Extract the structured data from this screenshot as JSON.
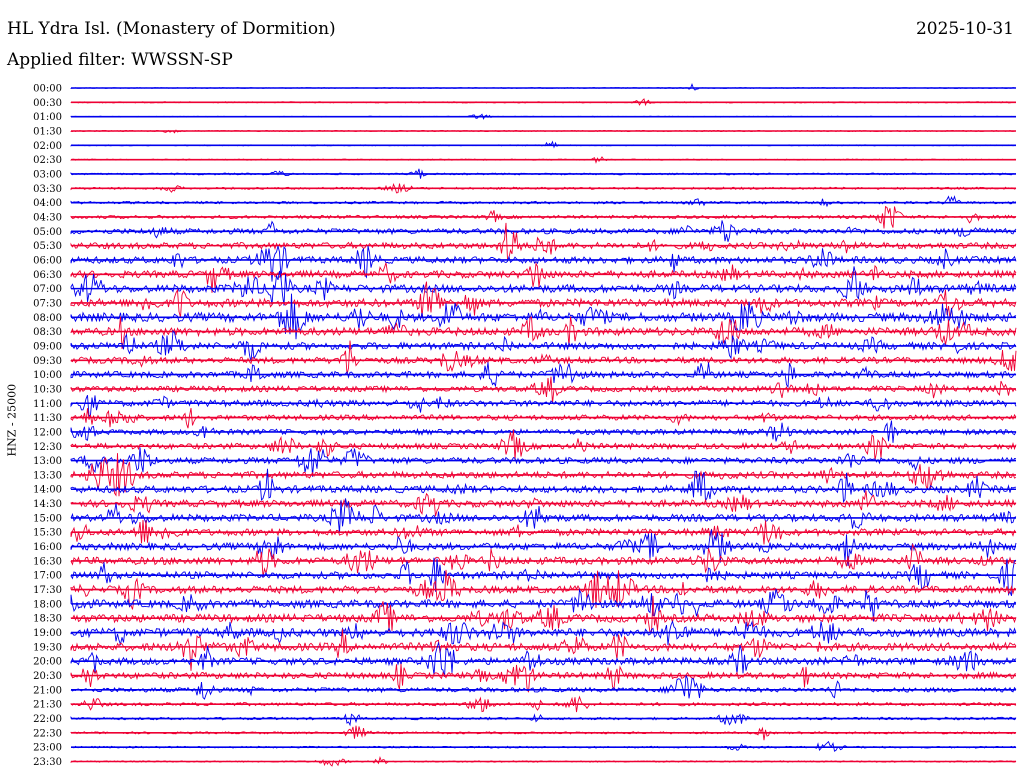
{
  "header": {
    "station": "HL Ydra Isl. (Monastery of Dormition)",
    "date": "2025-10-31",
    "filter": "Applied filter: WWSSN-SP"
  },
  "channel_label": "HNZ - 25000",
  "colors": {
    "odd_trace": "#0000ee",
    "even_trace": "#ee0033"
  },
  "chart_data": {
    "type": "line",
    "title": "HL Ydra Isl. (Monastery of Dormition)",
    "subtitle": "Applied filter: WWSSN-SP",
    "ylabel": "HNZ - 25000",
    "xlabel": "",
    "grid": false,
    "legend": "none",
    "series_colors_alternate": [
      "blue",
      "red"
    ],
    "rows": [
      {
        "label": "00:00",
        "level": 0.5
      },
      {
        "label": "00:30",
        "level": 0.7
      },
      {
        "label": "01:00",
        "level": 0.5
      },
      {
        "label": "01:30",
        "level": 0.6
      },
      {
        "label": "02:00",
        "level": 0.6
      },
      {
        "label": "02:30",
        "level": 0.7
      },
      {
        "label": "03:00",
        "level": 1.0
      },
      {
        "label": "03:30",
        "level": 1.2
      },
      {
        "label": "04:00",
        "level": 1.4
      },
      {
        "label": "04:30",
        "level": 1.8
      },
      {
        "label": "05:00",
        "level": 3.0
      },
      {
        "label": "05:30",
        "level": 3.5
      },
      {
        "label": "06:00",
        "level": 3.8
      },
      {
        "label": "06:30",
        "level": 4.0
      },
      {
        "label": "07:00",
        "level": 4.5
      },
      {
        "label": "07:30",
        "level": 4.5
      },
      {
        "label": "08:00",
        "level": 5.0
      },
      {
        "label": "08:30",
        "level": 4.5
      },
      {
        "label": "09:00",
        "level": 4.0
      },
      {
        "label": "09:30",
        "level": 3.5
      },
      {
        "label": "10:00",
        "level": 3.5
      },
      {
        "label": "10:30",
        "level": 3.2
      },
      {
        "label": "11:00",
        "level": 3.5
      },
      {
        "label": "11:30",
        "level": 3.0
      },
      {
        "label": "12:00",
        "level": 3.0
      },
      {
        "label": "12:30",
        "level": 3.2
      },
      {
        "label": "13:00",
        "level": 3.5
      },
      {
        "label": "13:30",
        "level": 3.8
      },
      {
        "label": "14:00",
        "level": 4.0
      },
      {
        "label": "14:30",
        "level": 4.0
      },
      {
        "label": "15:00",
        "level": 4.0
      },
      {
        "label": "15:30",
        "level": 3.8
      },
      {
        "label": "16:00",
        "level": 4.0
      },
      {
        "label": "16:30",
        "level": 4.2
      },
      {
        "label": "17:00",
        "level": 4.0
      },
      {
        "label": "17:30",
        "level": 4.2
      },
      {
        "label": "18:00",
        "level": 4.5
      },
      {
        "label": "18:30",
        "level": 4.5
      },
      {
        "label": "19:00",
        "level": 4.8
      },
      {
        "label": "19:30",
        "level": 4.5
      },
      {
        "label": "20:00",
        "level": 4.0
      },
      {
        "label": "20:30",
        "level": 3.5
      },
      {
        "label": "21:00",
        "level": 2.5
      },
      {
        "label": "21:30",
        "level": 1.8
      },
      {
        "label": "22:00",
        "level": 1.4
      },
      {
        "label": "22:30",
        "level": 1.2
      },
      {
        "label": "23:00",
        "level": 1.0
      },
      {
        "label": "23:30",
        "level": 0.8
      }
    ]
  }
}
